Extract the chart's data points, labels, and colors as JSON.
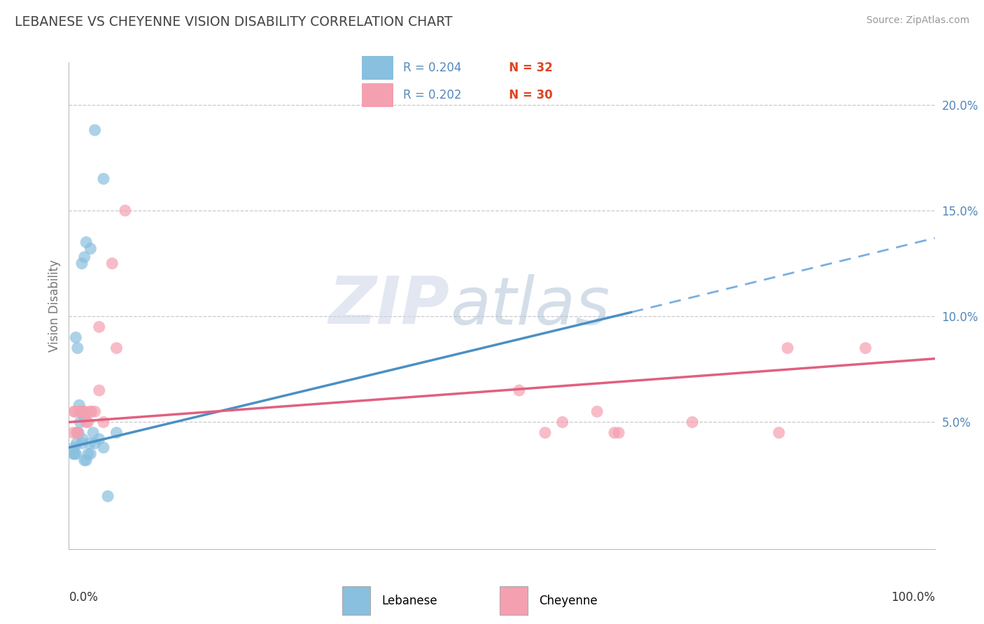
{
  "title": "LEBANESE VS CHEYENNE VISION DISABILITY CORRELATION CHART",
  "source": "Source: ZipAtlas.com",
  "ylabel": "Vision Disability",
  "xlim": [
    0,
    100
  ],
  "ylim": [
    -1,
    22
  ],
  "ytick_vals": [
    5,
    10,
    15,
    20
  ],
  "ytick_labels": [
    "5.0%",
    "10.0%",
    "15.0%",
    "20.0%"
  ],
  "blue_scatter": "#89bfdf",
  "pink_scatter": "#f4a0b0",
  "blue_line": "#4a90c4",
  "blue_line_dash": "#7aafe0",
  "pink_line": "#e06080",
  "grid_color": "#c8c8d0",
  "label_color": "#5588bb",
  "n_color": "#dd4422",
  "title_color": "#444444",
  "source_color": "#999999",
  "watermark_zip_color": "#ccd5e8",
  "watermark_atlas_color": "#b0c4d8",
  "legend_r1": "R = 0.204",
  "legend_n1": "N = 32",
  "legend_r2": "R = 0.202",
  "legend_n2": "N = 30",
  "leb_label": "Lebanese",
  "chey_label": "Cheyenne",
  "blue_line_x0": 0,
  "blue_line_y0": 3.8,
  "blue_line_x1": 65,
  "blue_line_y1": 10.2,
  "blue_dash_x0": 65,
  "blue_dash_y0": 10.2,
  "blue_dash_x1": 100,
  "blue_dash_y1": 13.7,
  "pink_line_x0": 0,
  "pink_line_y0": 5.0,
  "pink_line_x1": 100,
  "pink_line_y1": 8.0,
  "lebanese_x": [
    3.0,
    4.0,
    2.0,
    2.5,
    1.5,
    1.8,
    0.8,
    1.0,
    1.2,
    1.5,
    1.8,
    2.0,
    2.5,
    3.0,
    4.0,
    5.5,
    0.5,
    0.6,
    0.7,
    0.8,
    0.9,
    1.0,
    1.1,
    1.3,
    1.5,
    1.6,
    1.8,
    2.2,
    2.4,
    2.8,
    3.5,
    4.5
  ],
  "lebanese_y": [
    18.8,
    16.5,
    13.5,
    13.2,
    12.5,
    12.8,
    9.0,
    8.5,
    5.8,
    5.5,
    5.2,
    3.2,
    3.5,
    4.0,
    3.8,
    4.5,
    3.5,
    3.8,
    3.5,
    3.5,
    4.0,
    4.5,
    4.5,
    5.0,
    4.0,
    4.2,
    3.2,
    3.5,
    4.0,
    4.5,
    4.2,
    1.5
  ],
  "cheyenne_x": [
    3.5,
    5.0,
    6.5,
    0.6,
    0.9,
    1.4,
    2.0,
    2.5,
    3.5,
    52.0,
    57.0,
    63.0,
    63.5,
    72.0,
    83.0,
    0.5,
    0.7,
    1.0,
    1.2,
    1.6,
    1.9,
    2.2,
    2.6,
    3.0,
    4.0,
    55.0,
    61.0,
    82.0,
    92.0,
    5.5
  ],
  "cheyenne_y": [
    9.5,
    12.5,
    15.0,
    5.5,
    4.5,
    5.5,
    5.0,
    5.5,
    6.5,
    6.5,
    5.0,
    4.5,
    4.5,
    5.0,
    8.5,
    4.5,
    5.5,
    4.5,
    5.5,
    5.5,
    5.5,
    5.0,
    5.5,
    5.5,
    5.0,
    4.5,
    5.5,
    4.5,
    8.5,
    8.5
  ]
}
